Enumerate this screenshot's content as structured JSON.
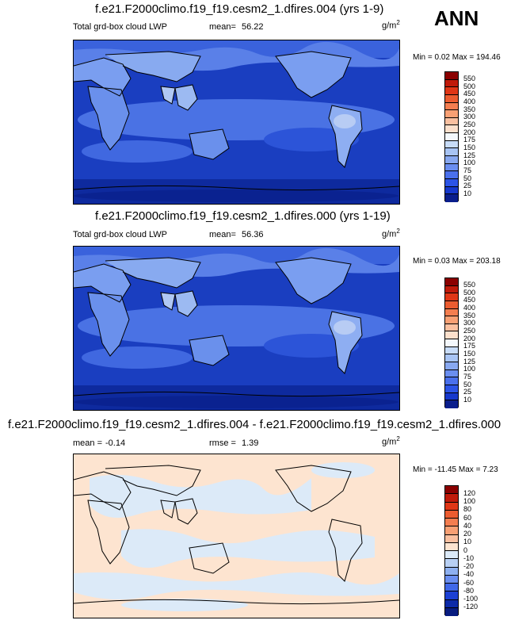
{
  "season": "ANN",
  "panels": [
    {
      "title": "f.e21.F2000climo.f19_f19.cesm2_1.dfires.004 (yrs 1-9)",
      "variable": "Total grd-box cloud LWP",
      "stat1_label": "mean=",
      "stat1_value": "56.22",
      "stat2_label": "",
      "stat2_value": "",
      "units": "g/m",
      "units_exp": "2",
      "minmax": "Min =   0.02 Max = 194.46",
      "levels": [
        "550",
        "500",
        "450",
        "400",
        "350",
        "300",
        "250",
        "200",
        "175",
        "150",
        "125",
        "100",
        "75",
        "50",
        "25",
        "10"
      ],
      "colors": [
        "#8b0000",
        "#c01a0a",
        "#e03616",
        "#ec5c30",
        "#f47e50",
        "#f8a074",
        "#fac0a0",
        "#fce0cc",
        "#f4f8fc",
        "#c8dcf8",
        "#a8c4f4",
        "#88a8f0",
        "#6a8ef0",
        "#4a70ec",
        "#2c54e6",
        "#1638cc",
        "#0a1e8c"
      ]
    },
    {
      "title": "f.e21.F2000climo.f19_f19.cesm2_1.dfires.000 (yrs 1-19)",
      "variable": "Total grd-box cloud LWP",
      "stat1_label": "mean=",
      "stat1_value": "56.36",
      "stat2_label": "",
      "stat2_value": "",
      "units": "g/m",
      "units_exp": "2",
      "minmax": "Min =   0.03 Max = 203.18",
      "levels": [
        "550",
        "500",
        "450",
        "400",
        "350",
        "300",
        "250",
        "200",
        "175",
        "150",
        "125",
        "100",
        "75",
        "50",
        "25",
        "10"
      ],
      "colors": [
        "#8b0000",
        "#c01a0a",
        "#e03616",
        "#ec5c30",
        "#f47e50",
        "#f8a074",
        "#fac0a0",
        "#fce0cc",
        "#f4f8fc",
        "#c8dcf8",
        "#a8c4f4",
        "#88a8f0",
        "#6a8ef0",
        "#4a70ec",
        "#2c54e6",
        "#1638cc",
        "#0a1e8c"
      ]
    },
    {
      "title": "f.e21.F2000climo.f19_f19.cesm2_1.dfires.004 - f.e21.F2000climo.f19_f19.cesm2_1.dfires.000",
      "variable": "",
      "stat1_label": "mean =",
      "stat1_value": "-0.14",
      "stat2_label": "rmse =",
      "stat2_value": "1.39",
      "units": "g/m",
      "units_exp": "2",
      "minmax": "Min = -11.45 Max =   7.23",
      "levels": [
        "120",
        "100",
        "80",
        "60",
        "40",
        "20",
        "10",
        "0",
        "-10",
        "-20",
        "-40",
        "-60",
        "-80",
        "-100",
        "-120"
      ],
      "colors": [
        "#8b0000",
        "#c01a0a",
        "#e03616",
        "#ec5c30",
        "#f47e50",
        "#f8a074",
        "#fac0a0",
        "#fde4d0",
        "#dceaf8",
        "#b8d0f4",
        "#8eb0f0",
        "#6a8ef0",
        "#4068e8",
        "#1c40d4",
        "#0c2aa8",
        "#081c80"
      ]
    }
  ],
  "colors": {
    "ocean_deep": "#0d2a9a",
    "ocean_mid": "#2a52d8",
    "land_light": "#7ea2ee",
    "diff_pos": "#fde4d0",
    "diff_neg": "#dceaf8"
  }
}
